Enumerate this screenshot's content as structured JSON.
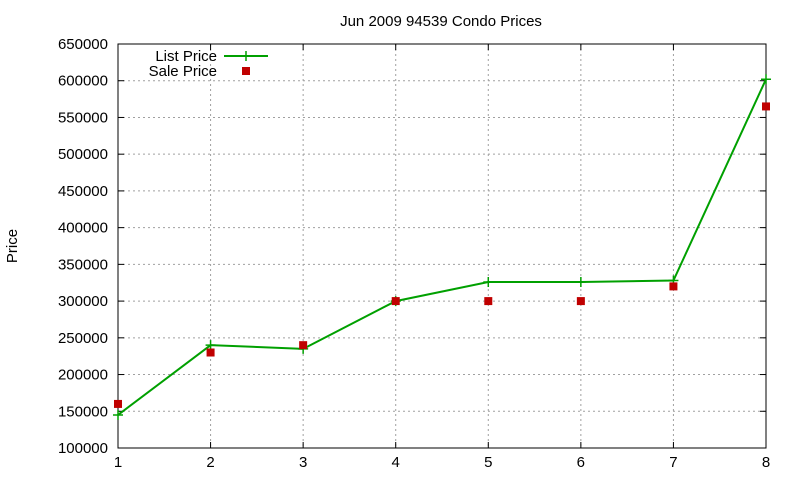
{
  "chart_data": {
    "type": "line",
    "title": "Jun 2009 94539 Condo Prices",
    "xlabel": "",
    "ylabel": "Price",
    "xlim": [
      1,
      8
    ],
    "ylim": [
      100000,
      650000
    ],
    "xticks": [
      1,
      2,
      3,
      4,
      5,
      6,
      7,
      8
    ],
    "yticks": [
      100000,
      150000,
      200000,
      250000,
      300000,
      350000,
      400000,
      450000,
      500000,
      550000,
      600000,
      650000
    ],
    "grid": true,
    "legend_position": "top-left",
    "series": [
      {
        "name": "List Price",
        "style": "lines+points",
        "marker": "plus",
        "color": "#00a000",
        "x": [
          1,
          2,
          3,
          4,
          5,
          6,
          7,
          8
        ],
        "y": [
          145000,
          240000,
          235000,
          300000,
          326000,
          326000,
          328000,
          602000
        ]
      },
      {
        "name": "Sale Price",
        "style": "points",
        "marker": "square",
        "color": "#c00000",
        "x": [
          1,
          2,
          3,
          4,
          5,
          6,
          7,
          8
        ],
        "y": [
          160000,
          230000,
          240000,
          300000,
          300000,
          300000,
          320000,
          565000
        ]
      }
    ]
  }
}
